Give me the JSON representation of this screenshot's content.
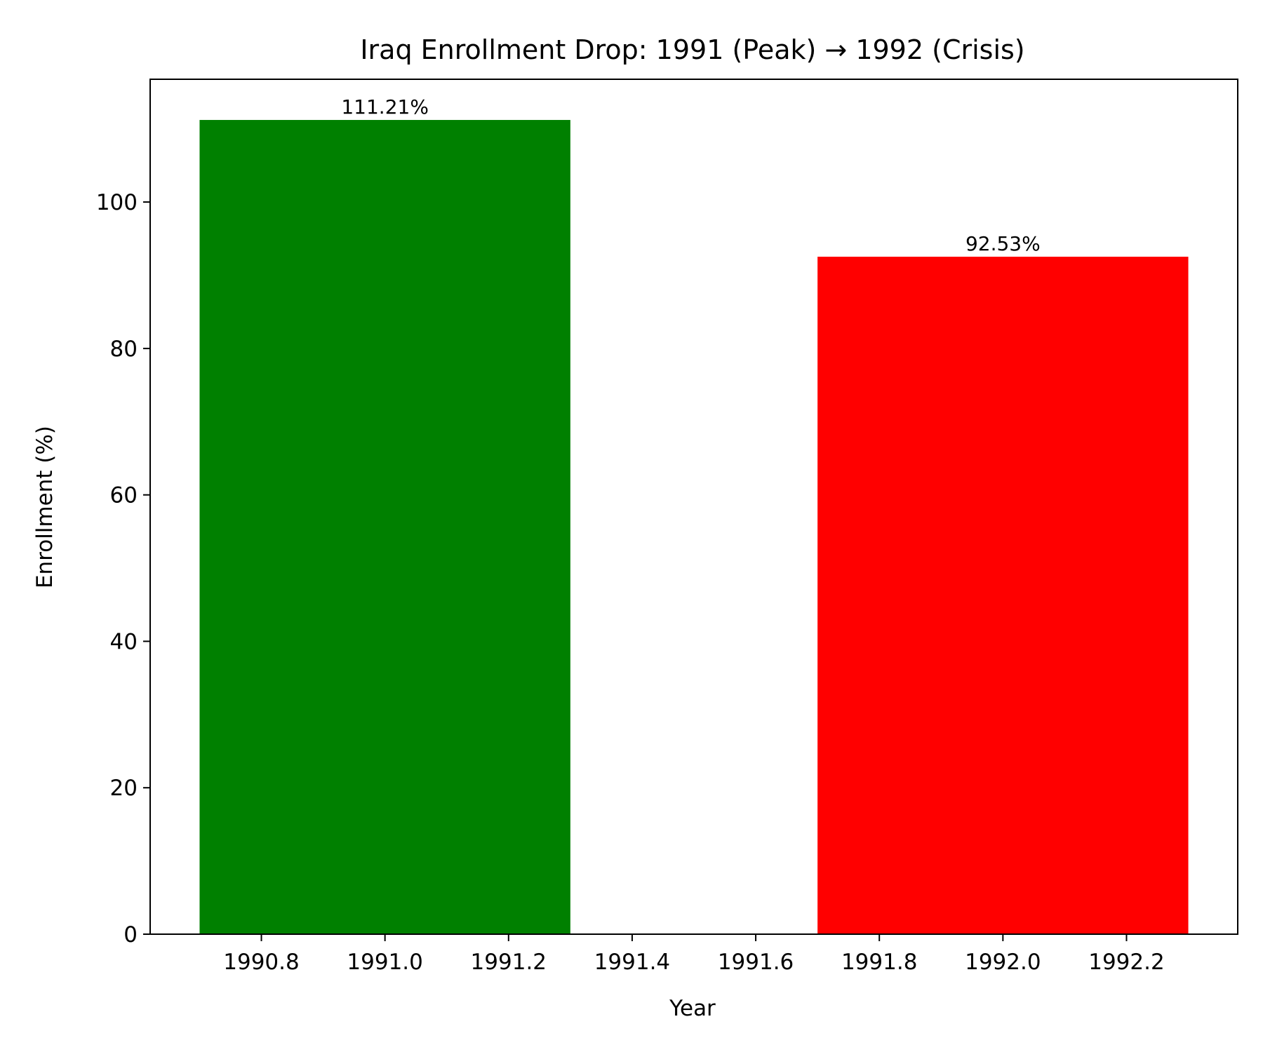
{
  "chart_data": {
    "type": "bar",
    "title": "Iraq Enrollment Drop: 1991 (Peak) → 1992 (Crisis)",
    "xlabel": "Year",
    "ylabel": "Enrollment (%)",
    "x": [
      1991,
      1992
    ],
    "values": [
      111.21,
      92.53
    ],
    "bar_width": 0.6,
    "data_labels": [
      "111.21%",
      "92.53%"
    ],
    "colors": [
      "#008000",
      "#ff0000"
    ],
    "xlim": [
      1990.62,
      1992.38
    ],
    "ylim": [
      0,
      116.77
    ],
    "xticks": [
      1990.8,
      1991.0,
      1991.2,
      1991.4,
      1991.6,
      1991.8,
      1992.0,
      1992.2
    ],
    "xtick_labels": [
      "1990.8",
      "1991.0",
      "1991.2",
      "1991.4",
      "1991.6",
      "1991.8",
      "1992.0",
      "1992.2"
    ],
    "yticks": [
      0,
      20,
      40,
      60,
      80,
      100
    ],
    "ytick_labels": [
      "0",
      "20",
      "40",
      "60",
      "80",
      "100"
    ],
    "grid": false,
    "legend": "none"
  }
}
